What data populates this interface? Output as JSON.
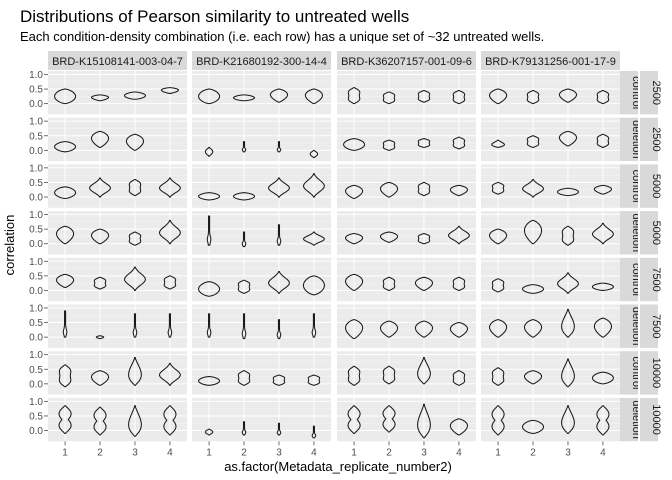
{
  "chart_data": {
    "type": "violin",
    "title": "Distributions of Pearson similarity to untreated wells",
    "subtitle": "Each condition-density combination (i.e. each row) has a unique set of ~32 untreated wells.",
    "xlabel": "as.factor(Metadata_replicate_number2)",
    "ylabel": "correlation",
    "x_categories": [
      "1",
      "2",
      "3",
      "4"
    ],
    "y_ticks": [
      "1.0",
      "0.5",
      "0.0"
    ],
    "y_tick_values": [
      1.0,
      0.5,
      0.0
    ],
    "ylim": [
      -0.3,
      1.05
    ],
    "columns": [
      "BRD-K15108141-003-04-7",
      "BRD-K21680192-300-14-4",
      "BRD-K36207157-001-09-6",
      "BRD-K79131256-001-17-9"
    ],
    "rows": [
      {
        "density": "2500",
        "condition": "control"
      },
      {
        "density": "2500",
        "condition": "deletion"
      },
      {
        "density": "5000",
        "condition": "control"
      },
      {
        "density": "5000",
        "condition": "deletion"
      },
      {
        "density": "7500",
        "condition": "control"
      },
      {
        "density": "7500",
        "condition": "deletion"
      },
      {
        "density": "10000",
        "condition": "control"
      },
      {
        "density": "10000",
        "condition": "deletion"
      }
    ],
    "violins": [
      [
        [
          [
            0.0,
            0.5,
            "f"
          ],
          [
            0.1,
            0.3,
            "w"
          ],
          [
            0.15,
            0.4,
            "f"
          ],
          [
            0.35,
            0.55,
            "w"
          ]
        ],
        [
          [
            0.0,
            0.5,
            "f"
          ],
          [
            0.1,
            0.3,
            "f"
          ],
          [
            0.05,
            0.5,
            "w"
          ],
          [
            0.0,
            0.5,
            "w"
          ]
        ],
        [
          [
            0.0,
            0.55,
            "d"
          ],
          [
            0.0,
            0.4,
            "d"
          ],
          [
            0.05,
            0.45,
            "d"
          ],
          [
            0.0,
            0.45,
            "d"
          ]
        ],
        [
          [
            0.0,
            0.5,
            "w"
          ],
          [
            0.0,
            0.45,
            "d"
          ],
          [
            0.05,
            0.5,
            "w"
          ],
          [
            0.0,
            0.45,
            "d"
          ]
        ]
      ],
      [
        [
          [
            -0.05,
            0.3,
            "f"
          ],
          [
            0.1,
            0.65,
            "w"
          ],
          [
            0.0,
            0.55,
            "w"
          ],
          null
        ],
        [
          [
            -0.2,
            0.1,
            "s"
          ],
          [
            -0.05,
            0.3,
            "n"
          ],
          [
            -0.05,
            0.3,
            "n"
          ],
          [
            -0.25,
            0.0,
            "s"
          ]
        ],
        [
          [
            0.0,
            0.4,
            "f"
          ],
          [
            0.0,
            0.35,
            "d"
          ],
          [
            0.1,
            0.4,
            "d"
          ],
          [
            0.05,
            0.45,
            "d"
          ]
        ],
        [
          [
            0.1,
            0.35,
            "b"
          ],
          [
            0.1,
            0.5,
            "d"
          ],
          [
            0.15,
            0.65,
            "w"
          ],
          [
            0.1,
            0.55,
            "d"
          ]
        ]
      ],
      [
        [
          [
            -0.05,
            0.35,
            "f"
          ],
          [
            0.0,
            0.65,
            "t"
          ],
          [
            0.05,
            0.6,
            "d"
          ],
          [
            0.0,
            0.65,
            "t"
          ]
        ],
        [
          [
            -0.1,
            0.15,
            "f"
          ],
          [
            -0.1,
            0.15,
            "f"
          ],
          [
            0.0,
            0.65,
            "t"
          ],
          [
            0.0,
            0.8,
            "t"
          ]
        ],
        [
          [
            -0.05,
            0.4,
            "w"
          ],
          [
            0.0,
            0.5,
            "w"
          ],
          [
            0.05,
            0.5,
            "d"
          ],
          [
            0.05,
            0.4,
            "w"
          ]
        ],
        [
          [
            0.1,
            0.5,
            "d"
          ],
          [
            0.0,
            0.6,
            "t"
          ],
          [
            0.05,
            0.3,
            "f"
          ],
          [
            0.1,
            0.4,
            "w"
          ]
        ]
      ],
      [
        [
          [
            0.0,
            0.6,
            "w"
          ],
          [
            0.0,
            0.5,
            "w"
          ],
          [
            -0.05,
            0.4,
            "d"
          ],
          [
            0.0,
            0.8,
            "t"
          ]
        ],
        [
          [
            -0.05,
            0.95,
            "n"
          ],
          [
            -0.1,
            0.4,
            "n"
          ],
          [
            -0.05,
            0.65,
            "n"
          ],
          [
            -0.05,
            0.4,
            "t"
          ]
        ],
        [
          [
            0.0,
            0.35,
            "w"
          ],
          [
            0.05,
            0.4,
            "w"
          ],
          [
            0.0,
            0.35,
            "d"
          ],
          [
            0.0,
            0.6,
            "t"
          ]
        ],
        [
          [
            0.0,
            0.5,
            "w"
          ],
          [
            0.0,
            0.8,
            "w"
          ],
          [
            -0.05,
            0.6,
            "d"
          ],
          [
            0.0,
            0.7,
            "t"
          ]
        ]
      ],
      [
        [
          [
            0.1,
            0.55,
            "w"
          ],
          [
            0.05,
            0.45,
            "d"
          ],
          [
            0.0,
            0.8,
            "t"
          ],
          [
            0.05,
            0.5,
            "d"
          ]
        ],
        [
          [
            -0.2,
            0.3,
            "f"
          ],
          [
            -0.1,
            0.35,
            "d"
          ],
          [
            -0.1,
            0.65,
            "t"
          ],
          [
            -0.15,
            0.5,
            "f"
          ]
        ],
        [
          [
            0.0,
            0.55,
            "w"
          ],
          [
            0.0,
            0.45,
            "d"
          ],
          [
            0.0,
            0.45,
            "w"
          ],
          [
            0.0,
            0.45,
            "d"
          ]
        ],
        [
          [
            -0.05,
            0.4,
            "d"
          ],
          [
            -0.1,
            0.2,
            "f"
          ],
          [
            -0.1,
            0.6,
            "t"
          ],
          [
            0.0,
            0.25,
            "f"
          ]
        ]
      ],
      [
        [
          [
            0.0,
            0.9,
            "n"
          ],
          [
            -0.05,
            0.05,
            "s"
          ],
          [
            0.0,
            0.8,
            "n"
          ],
          [
            0.0,
            0.8,
            "n"
          ]
        ],
        [
          [
            0.0,
            0.8,
            "n"
          ],
          [
            -0.05,
            0.8,
            "n"
          ],
          [
            -0.05,
            0.6,
            "n"
          ],
          [
            0.0,
            0.8,
            "n"
          ]
        ],
        [
          [
            -0.05,
            0.6,
            "w"
          ],
          [
            0.0,
            0.55,
            "w"
          ],
          [
            0.0,
            0.55,
            "w"
          ],
          [
            0.0,
            0.5,
            "w"
          ]
        ],
        [
          [
            0.0,
            0.6,
            "w"
          ],
          [
            0.0,
            0.6,
            "w"
          ],
          [
            0.0,
            0.95,
            "b"
          ],
          [
            0.0,
            0.65,
            "w"
          ]
        ]
      ],
      [
        [
          [
            -0.1,
            0.65,
            "d"
          ],
          [
            -0.05,
            0.45,
            "w"
          ],
          [
            -0.05,
            0.9,
            "b"
          ],
          [
            -0.05,
            0.7,
            "t"
          ]
        ],
        [
          [
            -0.05,
            0.25,
            "f"
          ],
          [
            -0.05,
            0.45,
            "d"
          ],
          [
            -0.05,
            0.3,
            "d"
          ],
          [
            -0.05,
            0.3,
            "d"
          ]
        ],
        [
          [
            -0.05,
            0.6,
            "d"
          ],
          [
            0.0,
            0.6,
            "d"
          ],
          [
            0.0,
            0.9,
            "b"
          ],
          [
            -0.05,
            0.45,
            "d"
          ]
        ],
        [
          [
            -0.05,
            0.55,
            "d"
          ],
          [
            0.0,
            0.45,
            "w"
          ],
          [
            -0.1,
            0.85,
            "b"
          ],
          [
            0.0,
            0.4,
            "f"
          ]
        ]
      ],
      [
        [
          [
            -0.1,
            0.85,
            "h"
          ],
          [
            -0.15,
            0.8,
            "h"
          ],
          [
            -0.2,
            0.85,
            "b"
          ],
          [
            -0.15,
            0.85,
            "h"
          ]
        ],
        [
          [
            -0.15,
            0.05,
            "s"
          ],
          [
            -0.15,
            0.3,
            "n"
          ],
          [
            -0.15,
            0.25,
            "n"
          ],
          [
            -0.25,
            0.15,
            "n"
          ]
        ],
        [
          [
            -0.1,
            0.85,
            "h"
          ],
          [
            -0.05,
            0.85,
            "h"
          ],
          [
            -0.25,
            0.9,
            "b"
          ],
          [
            -0.15,
            0.4,
            "w"
          ]
        ],
        [
          [
            -0.15,
            0.85,
            "h"
          ],
          [
            -0.1,
            0.35,
            "f"
          ],
          [
            -0.1,
            0.85,
            "b"
          ],
          [
            -0.15,
            0.85,
            "h"
          ]
        ]
      ]
    ]
  }
}
